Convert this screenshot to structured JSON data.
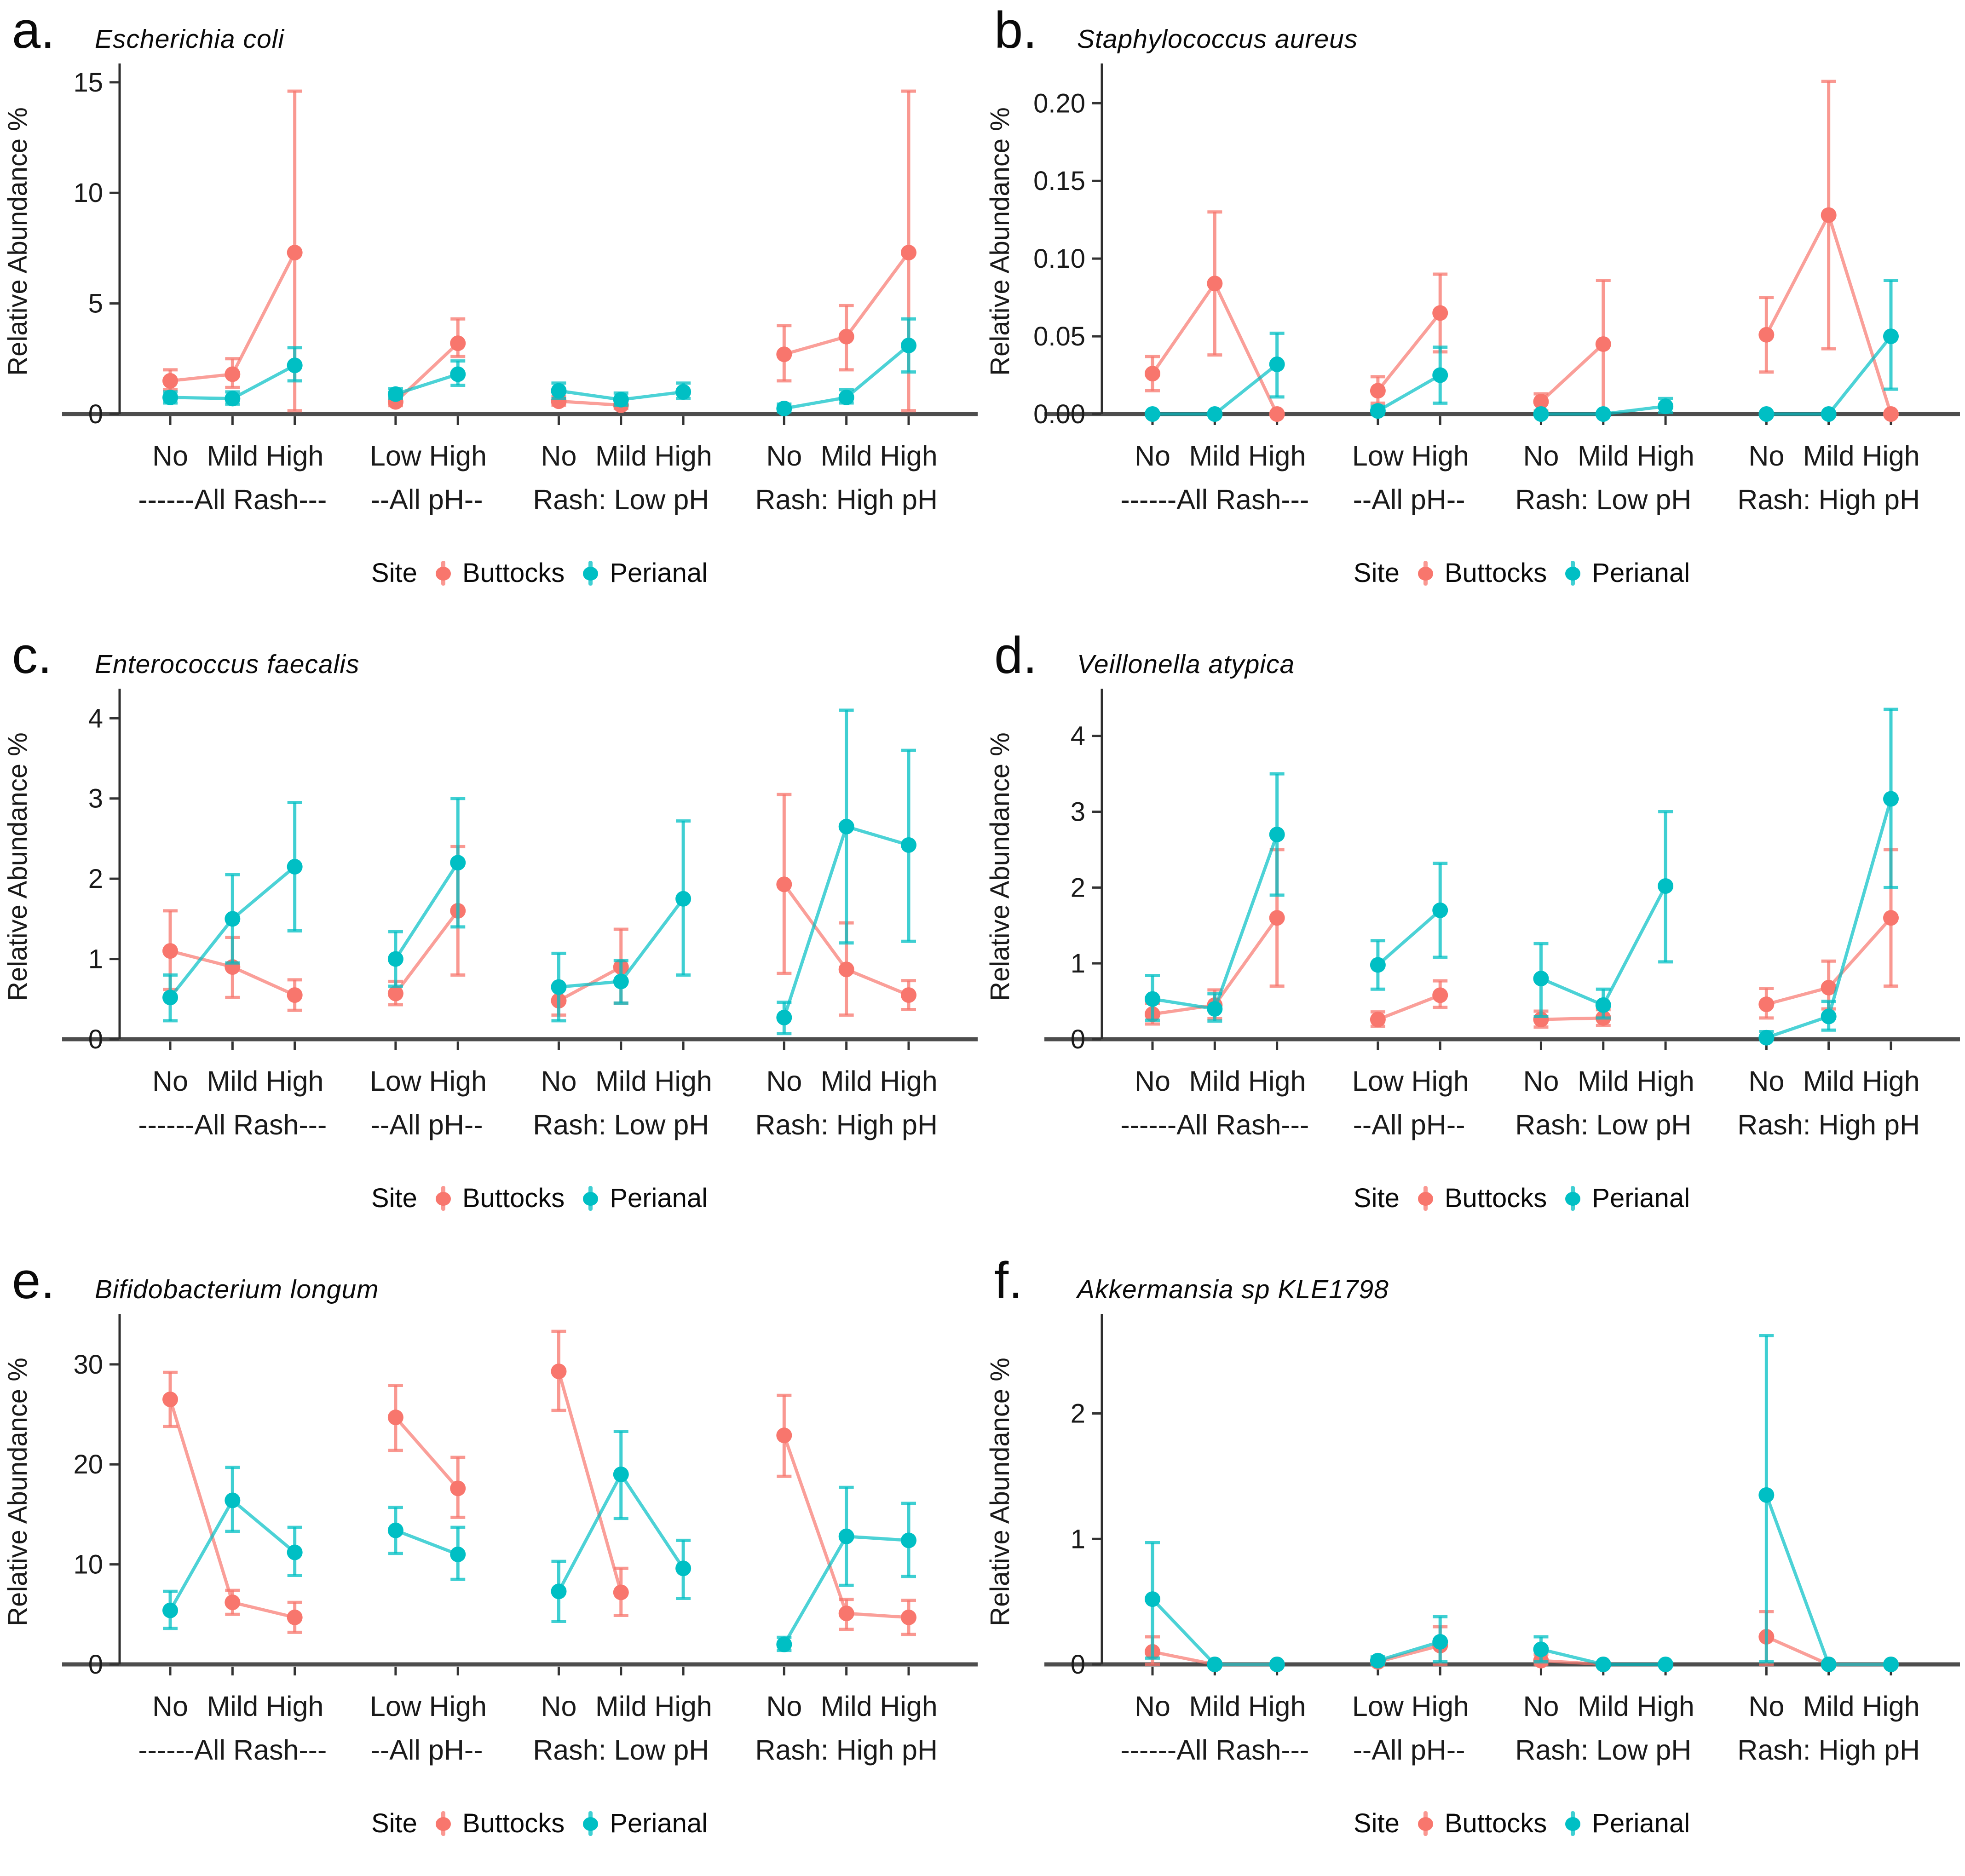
{
  "figure": {
    "background": "#ffffff"
  },
  "axis": {
    "ylabel": "Relative Abundance %"
  },
  "legend": {
    "title": "Site",
    "entries": [
      {
        "label": "Buttocks",
        "color": "#F8766D"
      },
      {
        "label": "Perianal",
        "color": "#00BFC4"
      }
    ]
  },
  "groups": [
    {
      "label": "------All Rash---",
      "ticks": [
        "No",
        "Mild",
        "High"
      ]
    },
    {
      "label": "--All pH--",
      "ticks": [
        "Low",
        "High"
      ]
    },
    {
      "label": "Rash: Low pH",
      "ticks": [
        "No",
        "Mild",
        "High"
      ]
    },
    {
      "label": "Rash: High pH",
      "ticks": [
        "No",
        "Mild",
        "High"
      ]
    }
  ],
  "chart_data": [
    {
      "type": "pointrange",
      "letter": "a.",
      "title": "Escherichia coli",
      "ylabel": "Relative Abundance %",
      "ymax": 15.6,
      "yticks": [
        {
          "v": 0,
          "label": "0"
        },
        {
          "v": 5,
          "label": "5"
        },
        {
          "v": 10,
          "label": "10"
        },
        {
          "v": 15,
          "label": "15"
        }
      ],
      "series": [
        {
          "name": "Buttocks",
          "color": "#F8766D",
          "values": [
            [
              1.5,
              1.1,
              2.0
            ],
            [
              1.8,
              1.2,
              2.5
            ],
            [
              7.3,
              0.15,
              14.6
            ],
            [
              0.55,
              0.38,
              0.75
            ],
            [
              3.2,
              2.6,
              4.3
            ],
            [
              0.58,
              0.4,
              0.8
            ],
            [
              0.4,
              0.25,
              0.6
            ],
            null,
            [
              2.7,
              1.5,
              4.0
            ],
            [
              3.5,
              2.0,
              4.9
            ],
            [
              7.3,
              0.15,
              14.6
            ]
          ]
        },
        {
          "name": "Perianal",
          "color": "#00BFC4",
          "values": [
            [
              0.75,
              0.5,
              1.0
            ],
            [
              0.7,
              0.45,
              1.0
            ],
            [
              2.2,
              1.5,
              3.0
            ],
            [
              0.9,
              0.7,
              1.15
            ],
            [
              1.8,
              1.3,
              2.4
            ],
            [
              1.05,
              0.7,
              1.4
            ],
            [
              0.65,
              0.4,
              0.95
            ],
            [
              1.0,
              0.7,
              1.4
            ],
            [
              0.25,
              0.1,
              0.45
            ],
            [
              0.75,
              0.5,
              1.1
            ],
            [
              3.1,
              1.9,
              4.3
            ]
          ]
        }
      ]
    },
    {
      "type": "pointrange",
      "letter": "b.",
      "title": "Staphylococcus aureus",
      "ylabel": "Relative Abundance %",
      "ymax": 0.222,
      "yticks": [
        {
          "v": 0,
          "label": "0.00"
        },
        {
          "v": 0.05,
          "label": "0.05"
        },
        {
          "v": 0.1,
          "label": "0.10"
        },
        {
          "v": 0.15,
          "label": "0.15"
        },
        {
          "v": 0.2,
          "label": "0.20"
        }
      ],
      "series": [
        {
          "name": "Buttocks",
          "color": "#F8766D",
          "values": [
            [
              0.026,
              0.015,
              0.037
            ],
            [
              0.084,
              0.038,
              0.13
            ],
            [
              0.0,
              0.0,
              0.0
            ],
            [
              0.015,
              0.007,
              0.024
            ],
            [
              0.065,
              0.04,
              0.09
            ],
            [
              0.008,
              0.002,
              0.013
            ],
            [
              0.045,
              0.0,
              0.086
            ],
            null,
            [
              0.051,
              0.027,
              0.075
            ],
            [
              0.128,
              0.042,
              0.214
            ],
            [
              0.0,
              0.0,
              0.0
            ]
          ]
        },
        {
          "name": "Perianal",
          "color": "#00BFC4",
          "values": [
            [
              0.0,
              0.0,
              0.0
            ],
            [
              0.0,
              0.0,
              0.0
            ],
            [
              0.032,
              0.011,
              0.052
            ],
            [
              0.002,
              0.0,
              0.005
            ],
            [
              0.025,
              0.007,
              0.043
            ],
            [
              0.0,
              0.0,
              0.0
            ],
            [
              0.0,
              0.0,
              0.0
            ],
            [
              0.005,
              0.001,
              0.01
            ],
            [
              0.0,
              0.0,
              0.0
            ],
            [
              0.0,
              0.0,
              0.0
            ],
            [
              0.05,
              0.016,
              0.086
            ]
          ]
        }
      ]
    },
    {
      "type": "pointrange",
      "letter": "c.",
      "title": "Enterococcus faecalis",
      "ylabel": "Relative Abundance %",
      "ymax": 4.3,
      "yticks": [
        {
          "v": 0,
          "label": "0"
        },
        {
          "v": 1,
          "label": "1"
        },
        {
          "v": 2,
          "label": "2"
        },
        {
          "v": 3,
          "label": "3"
        },
        {
          "v": 4,
          "label": "4"
        }
      ],
      "series": [
        {
          "name": "Buttocks",
          "color": "#F8766D",
          "values": [
            [
              1.1,
              0.62,
              1.6
            ],
            [
              0.9,
              0.52,
              1.27
            ],
            [
              0.55,
              0.36,
              0.74
            ],
            [
              0.57,
              0.43,
              0.72
            ],
            [
              1.6,
              0.8,
              2.4
            ],
            [
              0.48,
              0.3,
              0.67
            ],
            [
              0.9,
              0.45,
              1.37
            ],
            null,
            [
              1.93,
              0.82,
              3.05
            ],
            [
              0.87,
              0.3,
              1.45
            ],
            [
              0.55,
              0.37,
              0.73
            ]
          ]
        },
        {
          "name": "Perianal",
          "color": "#00BFC4",
          "values": [
            [
              0.52,
              0.23,
              0.8
            ],
            [
              1.5,
              0.95,
              2.05
            ],
            [
              2.15,
              1.35,
              2.95
            ],
            [
              1.0,
              0.66,
              1.34
            ],
            [
              2.2,
              1.4,
              3.0
            ],
            [
              0.65,
              0.23,
              1.07
            ],
            [
              0.72,
              0.45,
              0.98
            ],
            [
              1.75,
              0.8,
              2.72
            ],
            [
              0.27,
              0.07,
              0.46
            ],
            [
              2.65,
              1.2,
              4.1
            ],
            [
              2.42,
              1.22,
              3.6
            ]
          ]
        }
      ]
    },
    {
      "type": "pointrange",
      "letter": "d.",
      "title": "Veillonella atypica",
      "ylabel": "Relative Abundance %",
      "ymax": 4.55,
      "yticks": [
        {
          "v": 0,
          "label": "0"
        },
        {
          "v": 1,
          "label": "1"
        },
        {
          "v": 2,
          "label": "2"
        },
        {
          "v": 3,
          "label": "3"
        },
        {
          "v": 4,
          "label": "4"
        }
      ],
      "series": [
        {
          "name": "Buttocks",
          "color": "#F8766D",
          "values": [
            [
              0.33,
              0.2,
              0.47
            ],
            [
              0.45,
              0.27,
              0.65
            ],
            [
              1.6,
              0.7,
              2.5
            ],
            [
              0.26,
              0.17,
              0.36
            ],
            [
              0.58,
              0.42,
              0.77
            ],
            [
              0.26,
              0.16,
              0.37
            ],
            [
              0.28,
              0.18,
              0.39
            ],
            null,
            [
              0.46,
              0.28,
              0.67
            ],
            [
              0.68,
              0.4,
              1.03
            ],
            [
              1.6,
              0.7,
              2.5
            ]
          ]
        },
        {
          "name": "Perianal",
          "color": "#00BFC4",
          "values": [
            [
              0.53,
              0.25,
              0.84
            ],
            [
              0.4,
              0.24,
              0.6
            ],
            [
              2.7,
              1.9,
              3.5
            ],
            [
              0.98,
              0.66,
              1.3
            ],
            [
              1.7,
              1.08,
              2.32
            ],
            [
              0.8,
              0.3,
              1.26
            ],
            [
              0.45,
              0.28,
              0.66
            ],
            [
              2.02,
              1.02,
              3.0
            ],
            [
              0.02,
              0.0,
              0.1
            ],
            [
              0.3,
              0.12,
              0.5
            ],
            [
              3.17,
              2.0,
              4.35
            ]
          ]
        }
      ]
    },
    {
      "type": "pointrange",
      "letter": "e.",
      "title": "Bifidobacterium longum",
      "ylabel": "Relative Abundance %",
      "ymax": 34.5,
      "yticks": [
        {
          "v": 0,
          "label": "0"
        },
        {
          "v": 10,
          "label": "10"
        },
        {
          "v": 20,
          "label": "20"
        },
        {
          "v": 30,
          "label": "30"
        }
      ],
      "series": [
        {
          "name": "Buttocks",
          "color": "#F8766D",
          "values": [
            [
              26.5,
              23.8,
              29.2
            ],
            [
              6.2,
              5.0,
              7.4
            ],
            [
              4.7,
              3.2,
              6.2
            ],
            [
              24.7,
              21.4,
              27.9
            ],
            [
              17.6,
              14.7,
              20.7
            ],
            [
              29.3,
              25.4,
              33.3
            ],
            [
              7.2,
              4.9,
              9.6
            ],
            null,
            [
              22.9,
              18.8,
              26.9
            ],
            [
              5.1,
              3.5,
              6.5
            ],
            [
              4.7,
              3.0,
              6.4
            ]
          ]
        },
        {
          "name": "Perianal",
          "color": "#00BFC4",
          "values": [
            [
              5.4,
              3.6,
              7.3
            ],
            [
              16.4,
              13.3,
              19.7
            ],
            [
              11.2,
              8.9,
              13.7
            ],
            [
              13.4,
              11.1,
              15.7
            ],
            [
              11.0,
              8.5,
              13.7
            ],
            [
              7.3,
              4.3,
              10.3
            ],
            [
              19.0,
              14.6,
              23.3
            ],
            [
              9.6,
              6.6,
              12.4
            ],
            [
              2.0,
              1.4,
              2.7
            ],
            [
              12.8,
              7.9,
              17.7
            ],
            [
              12.4,
              8.8,
              16.1
            ]
          ]
        }
      ]
    },
    {
      "type": "pointrange",
      "letter": "f.",
      "title": "Akkermansia sp KLE1798",
      "ylabel": "Relative Abundance %",
      "ymax": 2.75,
      "yticks": [
        {
          "v": 0,
          "label": "0"
        },
        {
          "v": 1,
          "label": "1"
        },
        {
          "v": 2,
          "label": "2"
        }
      ],
      "series": [
        {
          "name": "Buttocks",
          "color": "#F8766D",
          "values": [
            [
              0.1,
              0.0,
              0.22
            ],
            [
              0.0,
              0.0,
              0.0
            ],
            [
              0.0,
              0.0,
              0.0
            ],
            [
              0.02,
              0.0,
              0.05
            ],
            [
              0.15,
              0.0,
              0.3
            ],
            [
              0.03,
              0.0,
              0.08
            ],
            [
              0.0,
              0.0,
              0.0
            ],
            null,
            [
              0.22,
              0.0,
              0.42
            ],
            [
              0.0,
              0.0,
              0.0
            ],
            [
              0.0,
              0.0,
              0.0
            ]
          ]
        },
        {
          "name": "Perianal",
          "color": "#00BFC4",
          "values": [
            [
              0.52,
              0.05,
              0.97
            ],
            [
              0.0,
              0.0,
              0.0
            ],
            [
              0.0,
              0.0,
              0.0
            ],
            [
              0.03,
              0.0,
              0.06
            ],
            [
              0.18,
              0.02,
              0.38
            ],
            [
              0.12,
              0.02,
              0.22
            ],
            [
              0.0,
              0.0,
              0.0
            ],
            [
              0.0,
              0.0,
              0.0
            ],
            [
              1.35,
              0.02,
              2.62
            ],
            [
              0.0,
              0.0,
              0.0
            ],
            [
              0.0,
              0.0,
              0.0
            ]
          ]
        }
      ]
    }
  ]
}
